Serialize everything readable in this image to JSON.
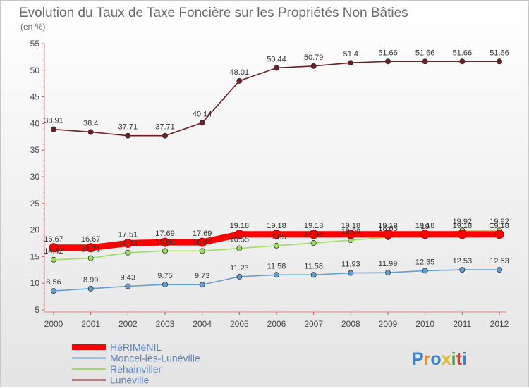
{
  "chart_data": {
    "type": "line",
    "title": "Evolution du Taux de Taxe Foncière sur les Propriétés Non Bâties",
    "ylabel": "(en %)",
    "x": [
      "2000",
      "2001",
      "2002",
      "2003",
      "2004",
      "2005",
      "2006",
      "2007",
      "2008",
      "2009",
      "2010",
      "2011",
      "2012"
    ],
    "ylim": [
      5,
      55
    ],
    "yticks": [
      5,
      10,
      15,
      20,
      25,
      30,
      35,
      40,
      45,
      50,
      55
    ],
    "grid": false,
    "legend_position": "bottom-left",
    "series": [
      {
        "name": "Lunéville",
        "color": "#6b1f23",
        "values": [
          38.91,
          38.4,
          37.71,
          37.71,
          40.14,
          48.01,
          50.44,
          50.79,
          51.4,
          51.66,
          51.66,
          51.66,
          51.66
        ],
        "labels": [
          "38.91",
          "38.4",
          "37.71",
          "37.71",
          "40.14",
          "48.01",
          "50.44",
          "50.79",
          "51.4",
          "51.66",
          "51.66",
          "51.66",
          "51.66"
        ]
      },
      {
        "name": "Rehainviller",
        "color": "#99e060",
        "values": [
          14.42,
          14.71,
          15.74,
          16.06,
          16.06,
          16.55,
          17.05,
          17.56,
          18.09,
          18.63,
          19.0,
          19.92,
          19.92
        ],
        "labels": [
          "14.42",
          "14.71",
          "15.74",
          "16.06",
          "16.06",
          "16.55",
          "17.05",
          "17.56",
          "18.09",
          "18.63",
          "19",
          "19.92",
          "19.92"
        ]
      },
      {
        "name": "Moncel-lès-Lunéville",
        "color": "#5f9ed8",
        "values": [
          8.56,
          8.99,
          9.43,
          9.75,
          9.73,
          11.23,
          11.58,
          11.58,
          11.93,
          11.99,
          12.35,
          12.53,
          12.53
        ],
        "labels": [
          "8.56",
          "8.99",
          "9.43",
          "9.75",
          "9.73",
          "11.23",
          "11.58",
          "11.58",
          "11.93",
          "11.99",
          "12.35",
          "12.53",
          "12.53"
        ]
      },
      {
        "name": "HéRIMéNIL",
        "color": "#ff0000",
        "values": [
          16.67,
          16.67,
          17.51,
          17.69,
          17.69,
          19.18,
          19.18,
          19.18,
          19.18,
          19.18,
          19.18,
          19.18,
          19.18
        ],
        "labels": [
          "16.67",
          "16.67",
          "17.51",
          "17.69",
          "17.69",
          "19.18",
          "19.18",
          "19.18",
          "19.18",
          "19.18",
          "19.18",
          "19.18",
          "19.18"
        ]
      }
    ],
    "legend": [
      "HéRIMéNIL",
      "Moncel-lès-Lunéville",
      "Rehainviller",
      "Lunéville"
    ]
  },
  "logo": {
    "text": "Proxiti"
  }
}
